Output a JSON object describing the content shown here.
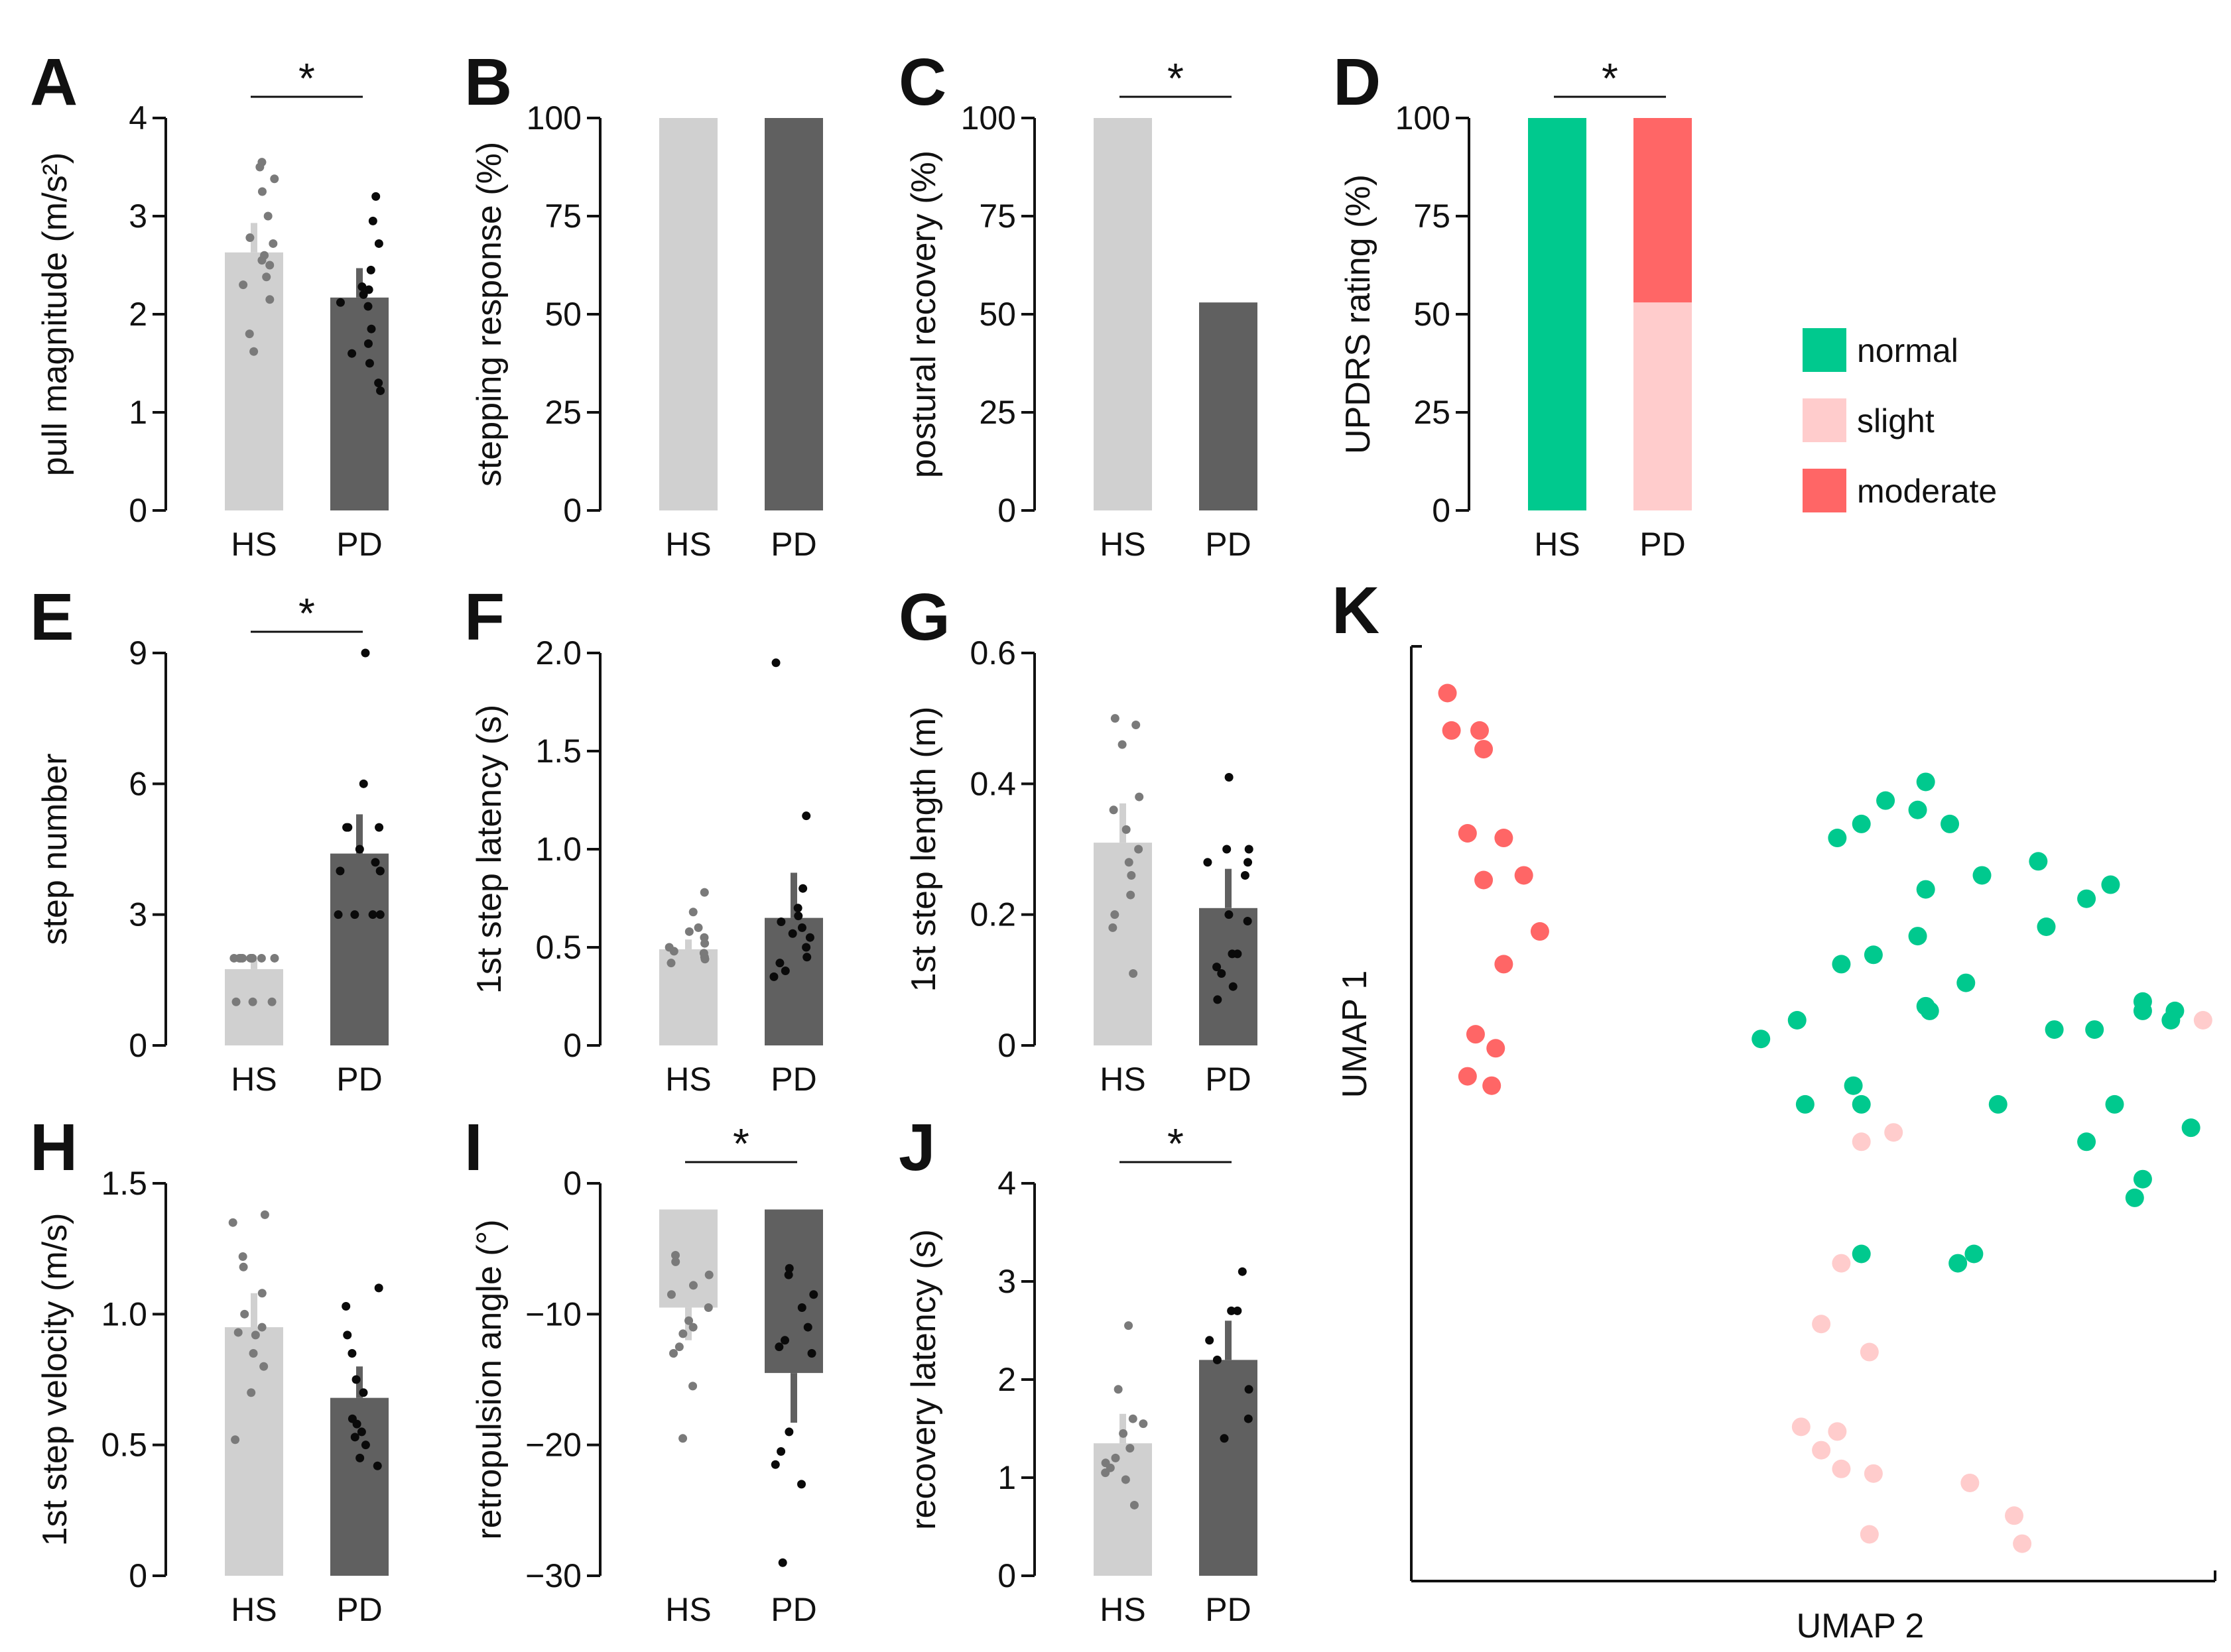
{
  "colors": {
    "hs_bar": "#d0d0d0",
    "pd_bar": "#606060",
    "hs_dot": "#7a7a7a",
    "pd_dot": "#0a0a0a",
    "normal": "#00c98e",
    "slight": "#ffcccc",
    "moderate": "#ff6666"
  },
  "chart_data": [
    {
      "id": "A",
      "type": "bar",
      "categories": [
        "HS",
        "PD"
      ],
      "ylabel": "pull magnitude (m/s²)",
      "ylim": [
        0,
        4
      ],
      "yticks": [
        0,
        1,
        2,
        3,
        4
      ],
      "ytick_labels": [
        "0",
        "1",
        "2",
        "3",
        "4"
      ],
      "values": [
        2.63,
        2.17
      ],
      "errors": [
        0.3,
        0.3
      ],
      "points": [
        [
          3.55,
          3.5,
          3.38,
          3.25,
          3.0,
          2.78,
          2.72,
          2.6,
          2.55,
          2.5,
          2.38,
          2.3,
          2.15,
          1.8,
          1.62
        ],
        [
          3.2,
          2.95,
          2.72,
          2.45,
          2.28,
          2.25,
          2.2,
          2.12,
          2.08,
          1.85,
          1.7,
          1.6,
          1.5,
          1.3,
          1.22
        ]
      ],
      "significance": "*"
    },
    {
      "id": "B",
      "type": "bar",
      "categories": [
        "HS",
        "PD"
      ],
      "ylabel": "stepping response (%)",
      "ylim": [
        0,
        100
      ],
      "yticks": [
        0,
        25,
        50,
        75,
        100
      ],
      "ytick_labels": [
        "0",
        "25",
        "50",
        "75",
        "100"
      ],
      "values": [
        100,
        100
      ],
      "errors": [
        0,
        0
      ],
      "points": [
        [],
        []
      ]
    },
    {
      "id": "C",
      "type": "bar",
      "categories": [
        "HS",
        "PD"
      ],
      "ylabel": "postural recovery (%)",
      "ylim": [
        0,
        100
      ],
      "yticks": [
        0,
        25,
        50,
        75,
        100
      ],
      "ytick_labels": [
        "0",
        "25",
        "50",
        "75",
        "100"
      ],
      "values": [
        100,
        53
      ],
      "errors": [
        0,
        0
      ],
      "points": [
        [],
        []
      ],
      "significance": "*"
    },
    {
      "id": "D",
      "type": "stacked_bar",
      "categories": [
        "HS",
        "PD"
      ],
      "ylabel": "UPDRS rating (%)",
      "ylim": [
        0,
        100
      ],
      "yticks": [
        0,
        25,
        50,
        75,
        100
      ],
      "ytick_labels": [
        "0",
        "25",
        "50",
        "75",
        "100"
      ],
      "series": [
        {
          "name": "normal",
          "values": [
            100,
            0
          ]
        },
        {
          "name": "slight",
          "values": [
            0,
            53
          ]
        },
        {
          "name": "moderate",
          "values": [
            0,
            47
          ]
        }
      ],
      "significance": "*",
      "legend": [
        "normal",
        "slight",
        "moderate"
      ]
    },
    {
      "id": "E",
      "type": "bar",
      "categories": [
        "HS",
        "PD"
      ],
      "ylabel": "step number",
      "ylim": [
        0,
        9
      ],
      "yticks": [
        0,
        3,
        6,
        9
      ],
      "ytick_labels": [
        "0",
        "3",
        "6",
        "9"
      ],
      "values": [
        1.75,
        4.4
      ],
      "errors": [
        0.2,
        0.9
      ],
      "points": [
        [
          2,
          2,
          2,
          2,
          2,
          2,
          2,
          2,
          2,
          1,
          1,
          1
        ],
        [
          9,
          6,
          5,
          5,
          5,
          4.5,
          4.2,
          4,
          4,
          4,
          3,
          3,
          3,
          3
        ]
      ],
      "significance": "*"
    },
    {
      "id": "F",
      "type": "bar",
      "categories": [
        "HS",
        "PD"
      ],
      "ylabel": "1st step latency (s)",
      "ylim": [
        0,
        2.0
      ],
      "yticks": [
        0,
        0.5,
        1.0,
        1.5,
        2.0
      ],
      "ytick_labels": [
        "0",
        "0.5",
        "1.0",
        "1.5",
        "2.0"
      ],
      "values": [
        0.49,
        0.65
      ],
      "errors": [
        0.05,
        0.23
      ],
      "points": [
        [
          0.78,
          0.68,
          0.6,
          0.58,
          0.55,
          0.52,
          0.5,
          0.48,
          0.47,
          0.45,
          0.44,
          0.42
        ],
        [
          1.95,
          1.17,
          0.8,
          0.7,
          0.66,
          0.63,
          0.6,
          0.57,
          0.55,
          0.5,
          0.45,
          0.42,
          0.38,
          0.35
        ]
      ]
    },
    {
      "id": "G",
      "type": "bar",
      "categories": [
        "HS",
        "PD"
      ],
      "ylabel": "1st step length (m)",
      "ylim": [
        0,
        0.6
      ],
      "yticks": [
        0,
        0.2,
        0.4,
        0.6
      ],
      "ytick_labels": [
        "0",
        "0.2",
        "0.4",
        "0.6"
      ],
      "values": [
        0.31,
        0.21
      ],
      "errors": [
        0.06,
        0.06
      ],
      "points": [
        [
          0.5,
          0.49,
          0.46,
          0.38,
          0.36,
          0.33,
          0.3,
          0.28,
          0.26,
          0.23,
          0.2,
          0.18,
          0.11
        ],
        [
          0.41,
          0.3,
          0.3,
          0.28,
          0.28,
          0.26,
          0.2,
          0.19,
          0.14,
          0.14,
          0.12,
          0.11,
          0.09,
          0.07
        ]
      ]
    },
    {
      "id": "H",
      "type": "bar",
      "categories": [
        "HS",
        "PD"
      ],
      "ylabel": "1st step velocity (m/s)",
      "ylim": [
        0,
        1.5
      ],
      "yticks": [
        0,
        0.5,
        1.0,
        1.5
      ],
      "ytick_labels": [
        "0",
        "0.5",
        "1.0",
        "1.5"
      ],
      "values": [
        0.95,
        0.68
      ],
      "errors": [
        0.13,
        0.12
      ],
      "points": [
        [
          1.38,
          1.35,
          1.22,
          1.18,
          1.08,
          1.0,
          0.95,
          0.93,
          0.92,
          0.85,
          0.8,
          0.7,
          0.52
        ],
        [
          1.1,
          1.03,
          0.92,
          0.85,
          0.75,
          0.7,
          0.6,
          0.58,
          0.55,
          0.53,
          0.5,
          0.45,
          0.42
        ]
      ]
    },
    {
      "id": "I",
      "type": "bar",
      "categories": [
        "HS",
        "PD"
      ],
      "ylabel": "retropulsion angle (°)",
      "ylim": [
        -30,
        0
      ],
      "yticks": [
        -30,
        -20,
        -10,
        0
      ],
      "ytick_labels": [
        "−30",
        "−20",
        "−10",
        "0"
      ],
      "bar_base": -2,
      "values": [
        -9.5,
        -14.5
      ],
      "errors": [
        2.5,
        3.8
      ],
      "points": [
        [
          -5.5,
          -6.0,
          -7.0,
          -7.8,
          -8.5,
          -9.5,
          -10.5,
          -11.0,
          -11.5,
          -12.5,
          -13.0,
          -15.5,
          -19.5
        ],
        [
          -6.5,
          -7.0,
          -8.5,
          -9.5,
          -11.0,
          -12.0,
          -12.5,
          -13.0,
          -19.0,
          -20.5,
          -21.5,
          -23.0,
          -29.0
        ]
      ],
      "significance": "*"
    },
    {
      "id": "J",
      "type": "bar",
      "categories": [
        "HS",
        "PD"
      ],
      "ylabel": "recovery latency (s)",
      "ylim": [
        0,
        4
      ],
      "yticks": [
        0,
        1,
        2,
        3,
        4
      ],
      "ytick_labels": [
        "0",
        "1",
        "2",
        "3",
        "4"
      ],
      "values": [
        1.35,
        2.2
      ],
      "errors": [
        0.3,
        0.4
      ],
      "points": [
        [
          2.55,
          1.9,
          1.6,
          1.55,
          1.45,
          1.3,
          1.2,
          1.15,
          1.1,
          1.05,
          0.98,
          0.72
        ],
        [
          3.1,
          2.7,
          2.7,
          2.4,
          2.2,
          1.9,
          1.6,
          1.4
        ]
      ],
      "significance": "*"
    },
    {
      "id": "K",
      "type": "scatter",
      "xlabel": "UMAP 2",
      "ylabel": "UMAP 1",
      "xlim": [
        0,
        100
      ],
      "ylim": [
        0,
        100
      ],
      "series": [
        {
          "name": "moderate",
          "points": [
            [
              4.5,
              95
            ],
            [
              5,
              91
            ],
            [
              8.5,
              91
            ],
            [
              9,
              89
            ],
            [
              7,
              80
            ],
            [
              11.5,
              79.5
            ],
            [
              9,
              75
            ],
            [
              14,
              75.5
            ],
            [
              16,
              69.5
            ],
            [
              11.5,
              66
            ],
            [
              8,
              58.5
            ],
            [
              10.5,
              57
            ],
            [
              7,
              54
            ],
            [
              10,
              53
            ]
          ]
        },
        {
          "name": "normal",
          "points": [
            [
              64,
              85.5
            ],
            [
              59,
              83.5
            ],
            [
              63,
              82.5
            ],
            [
              56,
              81
            ],
            [
              53,
              79.5
            ],
            [
              67,
              81
            ],
            [
              78,
              77
            ],
            [
              71,
              75.5
            ],
            [
              64,
              74
            ],
            [
              87,
              74.5
            ],
            [
              84,
              73
            ],
            [
              79,
              70
            ],
            [
              63,
              69
            ],
            [
              57.5,
              67
            ],
            [
              53.5,
              66
            ],
            [
              69,
              64
            ],
            [
              64,
              61.5
            ],
            [
              64.5,
              61
            ],
            [
              80,
              59
            ],
            [
              48,
              60
            ],
            [
              43.5,
              58
            ],
            [
              91,
              62
            ],
            [
              91,
              61
            ],
            [
              95,
              61
            ],
            [
              94.5,
              60
            ],
            [
              85,
              59
            ],
            [
              55,
              53
            ],
            [
              56,
              51
            ],
            [
              49,
              51
            ],
            [
              73,
              51
            ],
            [
              87.5,
              51
            ],
            [
              97,
              48.5
            ],
            [
              84,
              47
            ],
            [
              90,
              41
            ],
            [
              91,
              43
            ],
            [
              56,
              35
            ],
            [
              68,
              34
            ],
            [
              70,
              35
            ]
          ]
        },
        {
          "name": "slight",
          "points": [
            [
              98.5,
              60
            ],
            [
              53.5,
              34
            ],
            [
              51,
              27.5
            ],
            [
              57,
              24.5
            ],
            [
              53,
              16
            ],
            [
              48.5,
              16.5
            ],
            [
              51,
              14
            ],
            [
              57.5,
              11.5
            ],
            [
              57,
              5
            ],
            [
              69.5,
              10.5
            ],
            [
              53.5,
              12
            ],
            [
              75,
              7
            ],
            [
              76,
              4
            ],
            [
              60,
              48
            ],
            [
              56,
              47
            ]
          ]
        }
      ],
      "legend": [
        "normal",
        "slight",
        "moderate"
      ]
    }
  ]
}
